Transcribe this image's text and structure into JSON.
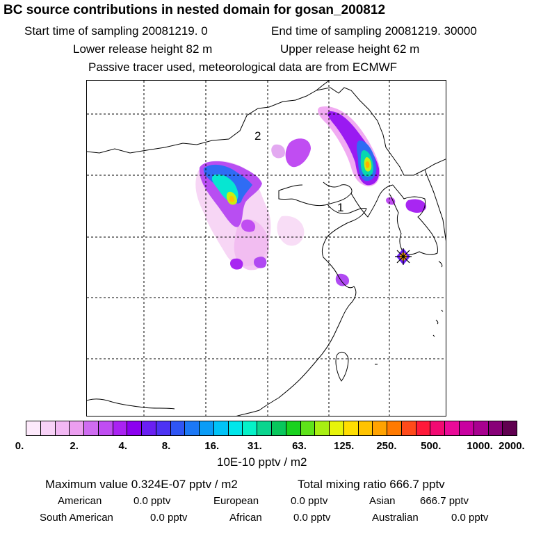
{
  "header": {
    "title": "BC  source contributions in nested domain for gosan_200812",
    "start": "Start time of sampling 20081219.     0",
    "end": "End time of sampling 20081219. 30000",
    "lower": "Lower release height   82 m",
    "upper": "Upper release height   62 m",
    "note": "Passive tracer used, meteorological data are from ECMWF"
  },
  "map": {
    "labels": {
      "region_1": "1",
      "region_2": "2"
    },
    "colors": {
      "land": "#000000",
      "grid": "#000000"
    }
  },
  "legend": {
    "colors": [
      "#fde9fb",
      "#f8d2f7",
      "#f2b8f3",
      "#ec9ef0",
      "#cf6cf1",
      "#c04df2",
      "#aa22f2",
      "#8c00f0",
      "#6a1ff2",
      "#4d33f4",
      "#2f55f4",
      "#1c78f6",
      "#0a9cf6",
      "#00c3f7",
      "#00e6ea",
      "#05f2c8",
      "#0ad58e",
      "#08c75c",
      "#19d21e",
      "#5ee31a",
      "#a8ef12",
      "#e7f40a",
      "#ffde00",
      "#ffc300",
      "#ffa300",
      "#ff7a00",
      "#ff4a1a",
      "#ff1a3a",
      "#f20a72",
      "#ea0a98",
      "#c800a0",
      "#a80090",
      "#880078",
      "#600050"
    ],
    "ticks": [
      "0.",
      "2.",
      "4.",
      "8.",
      "16.",
      "31.",
      "63.",
      "125.",
      "250.",
      "500.",
      "1000.",
      "2000."
    ],
    "unit": "10E-10 pptv / m2"
  },
  "stats": {
    "max": "Maximum value  0.324E-07 pptv / m2",
    "total": "Total mixing ratio      666.7 pptv",
    "regions": [
      {
        "name": "American",
        "value": "0.0 pptv"
      },
      {
        "name": "European",
        "value": "0.0 pptv"
      },
      {
        "name": "Asian",
        "value": "666.7 pptv"
      },
      {
        "name": "South American",
        "value": "0.0 pptv"
      },
      {
        "name": "African",
        "value": "0.0 pptv"
      },
      {
        "name": "Australian",
        "value": "0.0 pptv"
      }
    ]
  }
}
